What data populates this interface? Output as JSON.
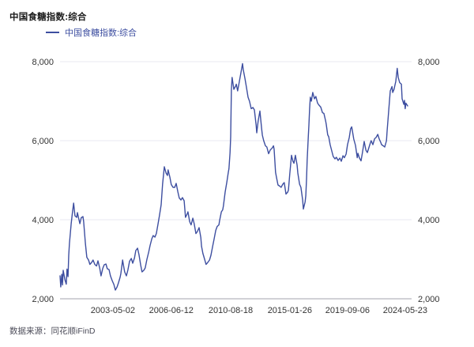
{
  "page": {
    "title": "中国食糖指数:综合",
    "source": "数据来源：同花顺iFinD"
  },
  "legend": {
    "label": "中国食糖指数:综合",
    "swatch_color": "#3D4EA0"
  },
  "chart_data": {
    "type": "line",
    "title": "中国食糖指数:综合",
    "xlabel": "",
    "ylabel": "",
    "ylim": [
      2000,
      8000
    ],
    "x_range": [
      "2000-01",
      "2024-05-23"
    ],
    "grid": "horizontal",
    "legend_position": "top-left",
    "colors": {
      "line": "#3D4EA0",
      "grid": "#e9e9f1",
      "axis_line": "#a3a3ad",
      "tick_text": "#333333"
    },
    "y_ticks": [
      {
        "label": "8,000",
        "value": 8000
      },
      {
        "label": "6,000",
        "value": 6000
      },
      {
        "label": "4,000",
        "value": 4000
      },
      {
        "label": "2,000",
        "value": 2000
      }
    ],
    "x_ticks": [
      {
        "label": "2003-05-02",
        "t": 0.152
      },
      {
        "label": "2006-06-12",
        "t": 0.32
      },
      {
        "label": "2010-08-18",
        "t": 0.491
      },
      {
        "label": "2015-01-26",
        "t": 0.661
      },
      {
        "label": "2019-09-06",
        "t": 0.827
      },
      {
        "label": "2024-05-23",
        "t": 0.993
      }
    ],
    "series": [
      {
        "name": "中国食糖指数:综合",
        "x_unit": "axis_fraction_0_to_1",
        "y_unit": "index_points",
        "points": [
          [
            0.0,
            2580
          ],
          [
            0.002,
            2300
          ],
          [
            0.005,
            2620
          ],
          [
            0.007,
            2350
          ],
          [
            0.009,
            2720
          ],
          [
            0.014,
            2480
          ],
          [
            0.018,
            2370
          ],
          [
            0.02,
            2750
          ],
          [
            0.023,
            2560
          ],
          [
            0.025,
            3100
          ],
          [
            0.027,
            3400
          ],
          [
            0.032,
            3900
          ],
          [
            0.036,
            4200
          ],
          [
            0.039,
            4420
          ],
          [
            0.043,
            4100
          ],
          [
            0.048,
            4060
          ],
          [
            0.05,
            4180
          ],
          [
            0.055,
            3980
          ],
          [
            0.057,
            3900
          ],
          [
            0.061,
            4050
          ],
          [
            0.066,
            4080
          ],
          [
            0.068,
            3950
          ],
          [
            0.073,
            3400
          ],
          [
            0.077,
            3050
          ],
          [
            0.082,
            2980
          ],
          [
            0.086,
            2870
          ],
          [
            0.091,
            2920
          ],
          [
            0.095,
            2980
          ],
          [
            0.1,
            2870
          ],
          [
            0.105,
            2830
          ],
          [
            0.109,
            2960
          ],
          [
            0.114,
            2780
          ],
          [
            0.118,
            2580
          ],
          [
            0.123,
            2770
          ],
          [
            0.127,
            2860
          ],
          [
            0.132,
            2880
          ],
          [
            0.136,
            2760
          ],
          [
            0.141,
            2740
          ],
          [
            0.145,
            2580
          ],
          [
            0.15,
            2460
          ],
          [
            0.155,
            2360
          ],
          [
            0.159,
            2220
          ],
          [
            0.164,
            2300
          ],
          [
            0.168,
            2400
          ],
          [
            0.173,
            2550
          ],
          [
            0.175,
            2640
          ],
          [
            0.18,
            2980
          ],
          [
            0.182,
            2870
          ],
          [
            0.186,
            2680
          ],
          [
            0.191,
            2580
          ],
          [
            0.195,
            2720
          ],
          [
            0.2,
            2950
          ],
          [
            0.205,
            3020
          ],
          [
            0.209,
            2900
          ],
          [
            0.214,
            3030
          ],
          [
            0.218,
            3220
          ],
          [
            0.223,
            3280
          ],
          [
            0.227,
            3120
          ],
          [
            0.232,
            2850
          ],
          [
            0.236,
            2680
          ],
          [
            0.241,
            2720
          ],
          [
            0.245,
            2780
          ],
          [
            0.25,
            3000
          ],
          [
            0.255,
            3180
          ],
          [
            0.259,
            3350
          ],
          [
            0.264,
            3520
          ],
          [
            0.268,
            3600
          ],
          [
            0.273,
            3560
          ],
          [
            0.277,
            3650
          ],
          [
            0.282,
            3900
          ],
          [
            0.286,
            4100
          ],
          [
            0.291,
            4380
          ],
          [
            0.295,
            4900
          ],
          [
            0.3,
            5340
          ],
          [
            0.305,
            5180
          ],
          [
            0.309,
            5120
          ],
          [
            0.311,
            5260
          ],
          [
            0.316,
            5080
          ],
          [
            0.32,
            4890
          ],
          [
            0.325,
            4820
          ],
          [
            0.33,
            4820
          ],
          [
            0.334,
            4920
          ],
          [
            0.339,
            4700
          ],
          [
            0.343,
            4550
          ],
          [
            0.348,
            4500
          ],
          [
            0.352,
            4560
          ],
          [
            0.357,
            4480
          ],
          [
            0.361,
            4060
          ],
          [
            0.366,
            4150
          ],
          [
            0.368,
            4200
          ],
          [
            0.373,
            3950
          ],
          [
            0.377,
            3870
          ],
          [
            0.382,
            4040
          ],
          [
            0.386,
            3900
          ],
          [
            0.391,
            3650
          ],
          [
            0.395,
            3700
          ],
          [
            0.4,
            3800
          ],
          [
            0.405,
            3550
          ],
          [
            0.407,
            3330
          ],
          [
            0.411,
            3150
          ],
          [
            0.416,
            3000
          ],
          [
            0.42,
            2870
          ],
          [
            0.425,
            2920
          ],
          [
            0.43,
            2980
          ],
          [
            0.434,
            3100
          ],
          [
            0.439,
            3330
          ],
          [
            0.443,
            3500
          ],
          [
            0.448,
            3730
          ],
          [
            0.452,
            3830
          ],
          [
            0.457,
            3870
          ],
          [
            0.459,
            3980
          ],
          [
            0.464,
            4200
          ],
          [
            0.468,
            4250
          ],
          [
            0.47,
            4350
          ],
          [
            0.475,
            4700
          ],
          [
            0.48,
            4960
          ],
          [
            0.484,
            5200
          ],
          [
            0.486,
            5290
          ],
          [
            0.489,
            5700
          ],
          [
            0.491,
            6100
          ],
          [
            0.493,
            7300
          ],
          [
            0.495,
            7600
          ],
          [
            0.5,
            7300
          ],
          [
            0.505,
            7380
          ],
          [
            0.507,
            7430
          ],
          [
            0.511,
            7260
          ],
          [
            0.516,
            7500
          ],
          [
            0.52,
            7700
          ],
          [
            0.525,
            7950
          ],
          [
            0.527,
            7800
          ],
          [
            0.532,
            7570
          ],
          [
            0.536,
            7370
          ],
          [
            0.541,
            7100
          ],
          [
            0.545,
            7000
          ],
          [
            0.55,
            6810
          ],
          [
            0.555,
            6840
          ],
          [
            0.559,
            6780
          ],
          [
            0.564,
            6400
          ],
          [
            0.566,
            6200
          ],
          [
            0.57,
            6500
          ],
          [
            0.575,
            6750
          ],
          [
            0.58,
            6300
          ],
          [
            0.582,
            6140
          ],
          [
            0.586,
            6000
          ],
          [
            0.591,
            5870
          ],
          [
            0.595,
            5840
          ],
          [
            0.6,
            5670
          ],
          [
            0.605,
            5770
          ],
          [
            0.609,
            5800
          ],
          [
            0.614,
            5870
          ],
          [
            0.616,
            5780
          ],
          [
            0.62,
            5200
          ],
          [
            0.623,
            5060
          ],
          [
            0.627,
            4880
          ],
          [
            0.632,
            4850
          ],
          [
            0.636,
            4820
          ],
          [
            0.641,
            4900
          ],
          [
            0.645,
            4940
          ],
          [
            0.65,
            4650
          ],
          [
            0.655,
            4700
          ],
          [
            0.657,
            4750
          ],
          [
            0.661,
            5160
          ],
          [
            0.666,
            5630
          ],
          [
            0.67,
            5480
          ],
          [
            0.673,
            5430
          ],
          [
            0.677,
            5630
          ],
          [
            0.682,
            5380
          ],
          [
            0.684,
            5180
          ],
          [
            0.689,
            4900
          ],
          [
            0.693,
            4820
          ],
          [
            0.698,
            4500
          ],
          [
            0.7,
            4270
          ],
          [
            0.705,
            4450
          ],
          [
            0.707,
            4610
          ],
          [
            0.709,
            5020
          ],
          [
            0.711,
            5500
          ],
          [
            0.714,
            6080
          ],
          [
            0.716,
            6390
          ],
          [
            0.718,
            6800
          ],
          [
            0.72,
            7100
          ],
          [
            0.723,
            7000
          ],
          [
            0.727,
            7220
          ],
          [
            0.732,
            7060
          ],
          [
            0.736,
            7120
          ],
          [
            0.741,
            6950
          ],
          [
            0.745,
            6900
          ],
          [
            0.75,
            6850
          ],
          [
            0.755,
            6710
          ],
          [
            0.759,
            6690
          ],
          [
            0.764,
            6500
          ],
          [
            0.766,
            6410
          ],
          [
            0.77,
            6150
          ],
          [
            0.773,
            6100
          ],
          [
            0.777,
            5900
          ],
          [
            0.782,
            5730
          ],
          [
            0.786,
            5600
          ],
          [
            0.791,
            5540
          ],
          [
            0.795,
            5580
          ],
          [
            0.8,
            5500
          ],
          [
            0.805,
            5560
          ],
          [
            0.809,
            5480
          ],
          [
            0.814,
            5620
          ],
          [
            0.818,
            5570
          ],
          [
            0.823,
            5660
          ],
          [
            0.827,
            5900
          ],
          [
            0.832,
            6080
          ],
          [
            0.836,
            6300
          ],
          [
            0.839,
            6350
          ],
          [
            0.843,
            6150
          ],
          [
            0.845,
            6040
          ],
          [
            0.85,
            5880
          ],
          [
            0.855,
            5570
          ],
          [
            0.857,
            5680
          ],
          [
            0.861,
            5570
          ],
          [
            0.866,
            5490
          ],
          [
            0.87,
            5700
          ],
          [
            0.875,
            5980
          ],
          [
            0.88,
            5760
          ],
          [
            0.884,
            5700
          ],
          [
            0.889,
            5840
          ],
          [
            0.893,
            5950
          ],
          [
            0.895,
            6000
          ],
          [
            0.9,
            5900
          ],
          [
            0.905,
            6050
          ],
          [
            0.909,
            6080
          ],
          [
            0.914,
            6160
          ],
          [
            0.918,
            6050
          ],
          [
            0.923,
            5950
          ],
          [
            0.925,
            5900
          ],
          [
            0.93,
            5870
          ],
          [
            0.934,
            5840
          ],
          [
            0.939,
            6000
          ],
          [
            0.941,
            6240
          ],
          [
            0.945,
            6700
          ],
          [
            0.95,
            7260
          ],
          [
            0.955,
            7370
          ],
          [
            0.957,
            7220
          ],
          [
            0.961,
            7300
          ],
          [
            0.964,
            7430
          ],
          [
            0.966,
            7500
          ],
          [
            0.97,
            7830
          ],
          [
            0.973,
            7600
          ],
          [
            0.977,
            7470
          ],
          [
            0.982,
            7430
          ],
          [
            0.984,
            7060
          ],
          [
            0.989,
            6920
          ],
          [
            0.991,
            7020
          ],
          [
            0.993,
            6810
          ],
          [
            0.995,
            6950
          ],
          [
            1.0,
            6880
          ]
        ]
      }
    ]
  }
}
